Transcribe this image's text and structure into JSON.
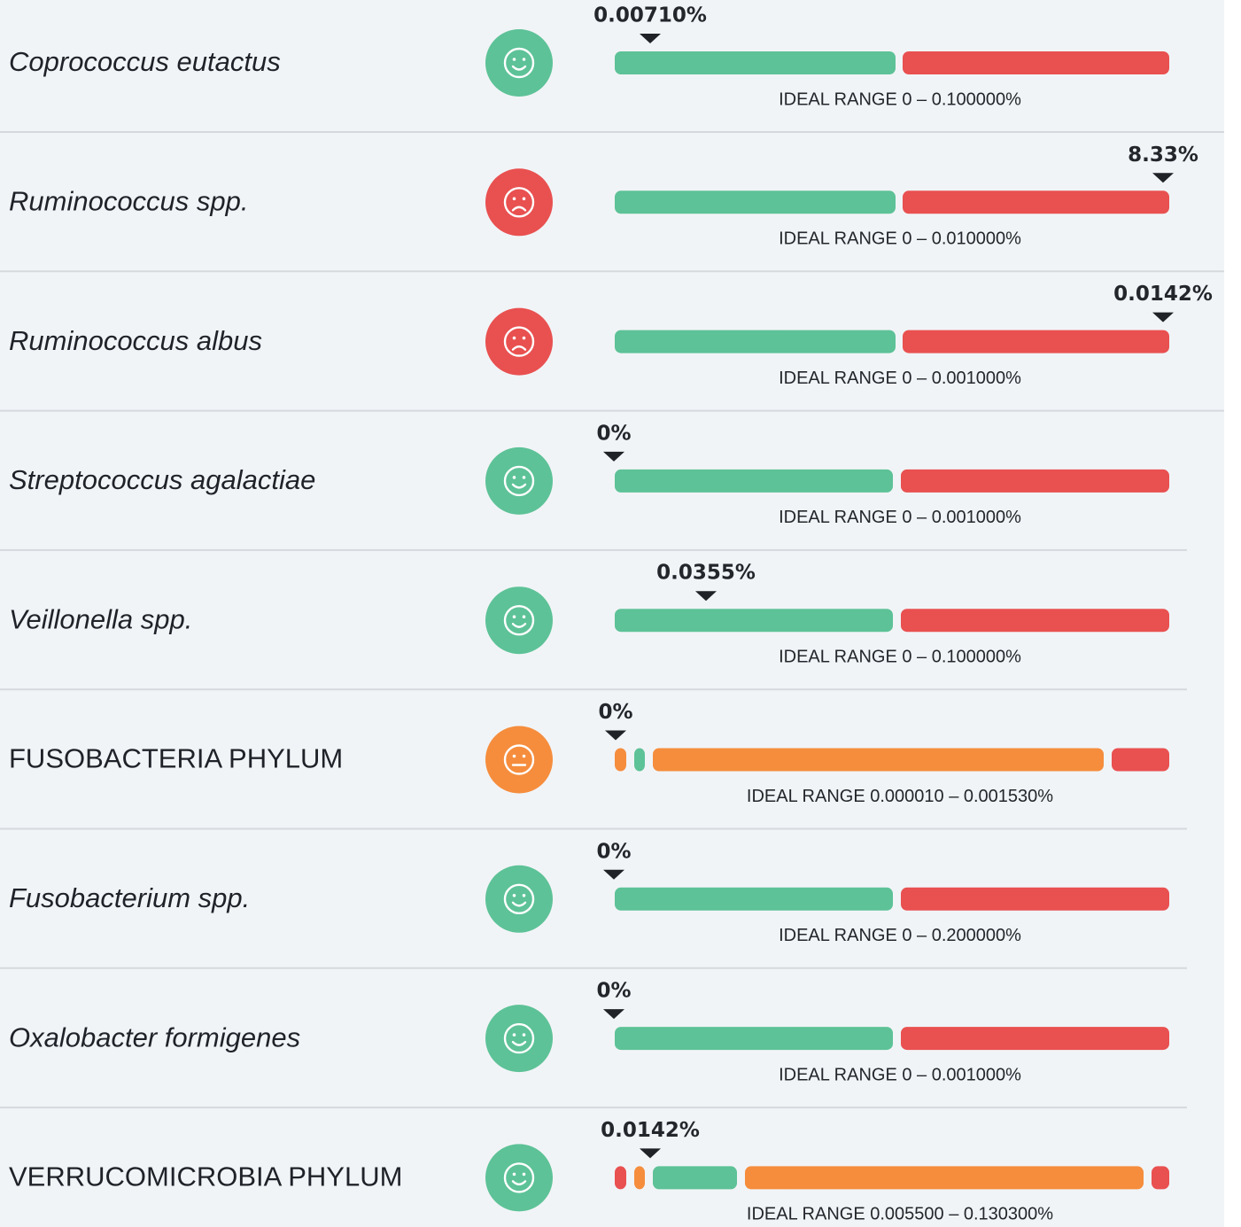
{
  "rows": [
    {
      "name": "Coprococcus eutactus",
      "italic": true,
      "status": "good",
      "value": "0.00710%",
      "range": "IDEAL RANGE 0 – 0.100000%",
      "segments": [
        "green",
        "red"
      ]
    },
    {
      "name": "Ruminococcus spp.",
      "italic": true,
      "status": "bad",
      "value": "8.33%",
      "range": "IDEAL RANGE 0 – 0.010000%",
      "segments": [
        "green",
        "red"
      ]
    },
    {
      "name": "Ruminococcus albus",
      "italic": true,
      "status": "bad",
      "value": "0.0142%",
      "range": "IDEAL RANGE 0 – 0.001000%",
      "segments": [
        "green",
        "red"
      ]
    },
    {
      "name": "Streptococcus agalactiae",
      "italic": true,
      "status": "good",
      "value": "0%",
      "range": "IDEAL RANGE 0 – 0.001000%",
      "segments": [
        "green",
        "red"
      ]
    },
    {
      "name": "Veillonella spp.",
      "italic": true,
      "status": "good",
      "value": "0.0355%",
      "range": "IDEAL RANGE 0 – 0.100000%",
      "segments": [
        "green",
        "red"
      ]
    },
    {
      "name": "FUSOBACTERIA PHYLUM",
      "italic": false,
      "status": "neutral",
      "value": "0%",
      "range": "IDEAL RANGE 0.000010 – 0.001530%",
      "segments": [
        "orange",
        "green",
        "orange",
        "red"
      ]
    },
    {
      "name": "Fusobacterium spp.",
      "italic": true,
      "status": "good",
      "value": "0%",
      "range": "IDEAL RANGE 0 – 0.200000%",
      "segments": [
        "green",
        "red"
      ]
    },
    {
      "name": "Oxalobacter formigenes",
      "italic": true,
      "status": "good",
      "value": "0%",
      "range": "IDEAL RANGE 0 – 0.001000%",
      "segments": [
        "green",
        "red"
      ]
    },
    {
      "name": "VERRUCOMICROBIA PHYLUM",
      "italic": false,
      "status": "good",
      "value": "0.0142%",
      "range": "IDEAL RANGE 0.005500 – 0.130300%",
      "segments": [
        "red",
        "orange",
        "green",
        "orange",
        "red"
      ]
    }
  ]
}
